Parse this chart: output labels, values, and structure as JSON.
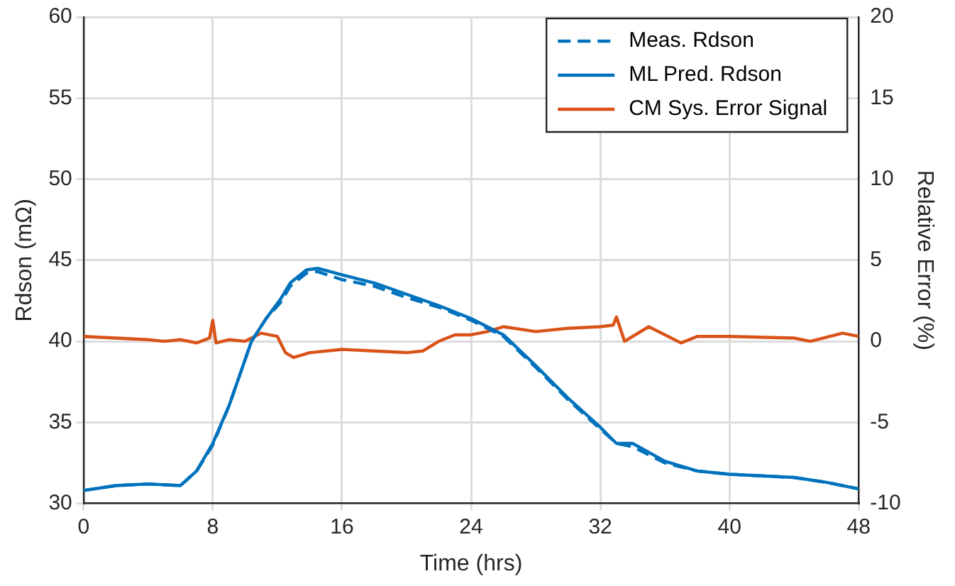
{
  "chart_data": {
    "type": "line",
    "xlabel": "Time (hrs)",
    "ylabel": "Rdson (mΩ)",
    "y2label": "Relative Error (%)",
    "xlim": [
      0,
      48
    ],
    "xticks": [
      0,
      8,
      16,
      24,
      32,
      40,
      48
    ],
    "ylim": [
      30,
      60
    ],
    "yticks": [
      30,
      35,
      40,
      45,
      50,
      55,
      60
    ],
    "y2lim": [
      -10,
      20
    ],
    "y2ticks": [
      -10,
      -5,
      0,
      5,
      10,
      15,
      20
    ],
    "grid": true,
    "legend": "top right",
    "marker": "none",
    "series": [
      {
        "name": "Meas. Rdson",
        "color": "#0072bd",
        "line_style": "dashed",
        "x": [
          0,
          2,
          4,
          6,
          7,
          8,
          9,
          10.4,
          11.3,
          12.2,
          12.8,
          13.8,
          14.5,
          16,
          18,
          20,
          22,
          24,
          26,
          28,
          30,
          32,
          33,
          34,
          36,
          38,
          40,
          44,
          46,
          48
        ],
        "values": [
          30.8,
          31.1,
          31.2,
          31.1,
          32,
          33.6,
          36,
          40,
          41.4,
          42.4,
          43.4,
          44.2,
          44.3,
          43.8,
          43.4,
          42.7,
          42.1,
          41.3,
          40.3,
          38.4,
          36.4,
          34.6,
          33.7,
          33.5,
          32.5,
          32,
          31.8,
          31.6,
          31.3,
          30.9
        ]
      },
      {
        "name": "ML Pred. Rdson",
        "color": "#0072bd",
        "line_style": "solid",
        "x": [
          0,
          2,
          4,
          6,
          7,
          8,
          9,
          10.4,
          11.3,
          12.2,
          12.8,
          13.8,
          14.5,
          16,
          18,
          20,
          22,
          24,
          26,
          28,
          30,
          32,
          33,
          34,
          36,
          38,
          40,
          44,
          46,
          48
        ],
        "values": [
          30.8,
          31.1,
          31.2,
          31.1,
          32,
          33.7,
          36,
          40,
          41.4,
          42.6,
          43.6,
          44.4,
          44.5,
          44.1,
          43.6,
          42.9,
          42.2,
          41.4,
          40.4,
          38.5,
          36.5,
          34.7,
          33.7,
          33.7,
          32.6,
          32,
          31.8,
          31.6,
          31.3,
          30.9
        ]
      },
      {
        "name": "CM Sys. Error Signal",
        "color": "#d95319",
        "line_style": "solid",
        "axis": "y2",
        "x": [
          0,
          2,
          4,
          5,
          6,
          7,
          7.8,
          8,
          8.2,
          9,
          10,
          11,
          12,
          12.5,
          13,
          14,
          16,
          18,
          20,
          21,
          22,
          23,
          24,
          25,
          26,
          28,
          30,
          32,
          32.8,
          33,
          33.5,
          35,
          37,
          38,
          40,
          44,
          45,
          47,
          48
        ],
        "values": [
          0.3,
          0.2,
          0.1,
          0,
          0.1,
          -0.1,
          0.2,
          1.3,
          -0.1,
          0.1,
          0,
          0.5,
          0.3,
          -0.7,
          -1,
          -0.7,
          -0.5,
          -0.6,
          -0.7,
          -0.6,
          0,
          0.4,
          0.4,
          0.6,
          0.9,
          0.6,
          0.8,
          0.9,
          1,
          1.5,
          0,
          0.9,
          -0.1,
          0.3,
          0.3,
          0.2,
          0,
          0.5,
          0.3
        ]
      }
    ]
  }
}
